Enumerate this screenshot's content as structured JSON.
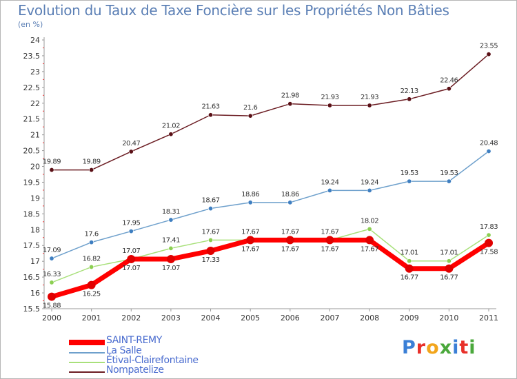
{
  "title": "Evolution du Taux de Taxe Foncière sur les Propriétés Non Bâties",
  "subtitle": "(en %)",
  "logo": {
    "text": "Proxiti",
    "colors": [
      "#3a7fd6",
      "#e8302a",
      "#f2a51c",
      "#4aa83b",
      "#3a7fd6",
      "#e8302a",
      "#4aa83b"
    ]
  },
  "chart_data": {
    "type": "line",
    "x": [
      "2000",
      "2001",
      "2002",
      "2003",
      "2004",
      "2005",
      "2006",
      "2007",
      "2008",
      "2009",
      "2010",
      "2011"
    ],
    "ylim": [
      15.5,
      24
    ],
    "yticks": [
      "15.5",
      "16",
      "16.5",
      "17",
      "17.5",
      "18",
      "18.5",
      "19",
      "19.5",
      "20",
      "20.5",
      "21",
      "21.5",
      "22",
      "22.5",
      "23",
      "23.5",
      "24"
    ],
    "grid": false,
    "legend_placement": "bottom-left",
    "series": [
      {
        "name": "Nompatelize",
        "color": "#6b1c22",
        "marker": "#5a1016",
        "values": [
          19.89,
          19.89,
          20.47,
          21.02,
          21.63,
          21.6,
          21.98,
          21.93,
          21.93,
          22.13,
          22.46,
          23.55
        ],
        "labels": [
          "19.89",
          "19.89",
          "20.47",
          "21.02",
          "21.63",
          "21.6",
          "21.98",
          "21.93",
          "21.93",
          "22.13",
          "22.46",
          "23.55"
        ]
      },
      {
        "name": "La Salle",
        "color": "#6ea0cc",
        "marker": "#3f7fc1",
        "values": [
          17.09,
          17.6,
          17.95,
          18.31,
          18.67,
          18.86,
          18.86,
          19.24,
          19.24,
          19.53,
          19.53,
          20.48
        ],
        "labels": [
          "17.09",
          "17.6",
          "17.95",
          "18.31",
          "18.67",
          "18.86",
          "18.86",
          "19.24",
          "19.24",
          "19.53",
          "19.53",
          "20.48"
        ]
      },
      {
        "name": "Étival-Clairefontaine",
        "color": "#a8e07a",
        "marker": "#8ccf52",
        "values": [
          16.33,
          16.82,
          17.07,
          17.41,
          17.67,
          17.67,
          17.67,
          17.67,
          18.02,
          17.01,
          17.01,
          17.83
        ],
        "labels": [
          "16.33",
          "16.82",
          "17.07",
          "17.41",
          "17.67",
          "17.67",
          "17.67",
          "17.67",
          "18.02",
          "17.01",
          "17.01",
          "17.83"
        ]
      },
      {
        "name": "SAINT-REMY",
        "color": "#ff0000",
        "marker": "#e00000",
        "values": [
          15.88,
          16.25,
          17.07,
          17.07,
          17.33,
          17.67,
          17.67,
          17.67,
          17.67,
          16.77,
          16.77,
          17.58
        ],
        "labels": [
          "15.88",
          "16.25",
          "17.07",
          "17.07",
          "17.33",
          "17.67",
          "17.67",
          "17.67",
          "17.67",
          "16.77",
          "16.77",
          "17.58"
        ]
      }
    ],
    "legend": [
      "SAINT-REMY",
      "La Salle",
      "Étival-Clairefontaine",
      "Nompatelize"
    ]
  }
}
